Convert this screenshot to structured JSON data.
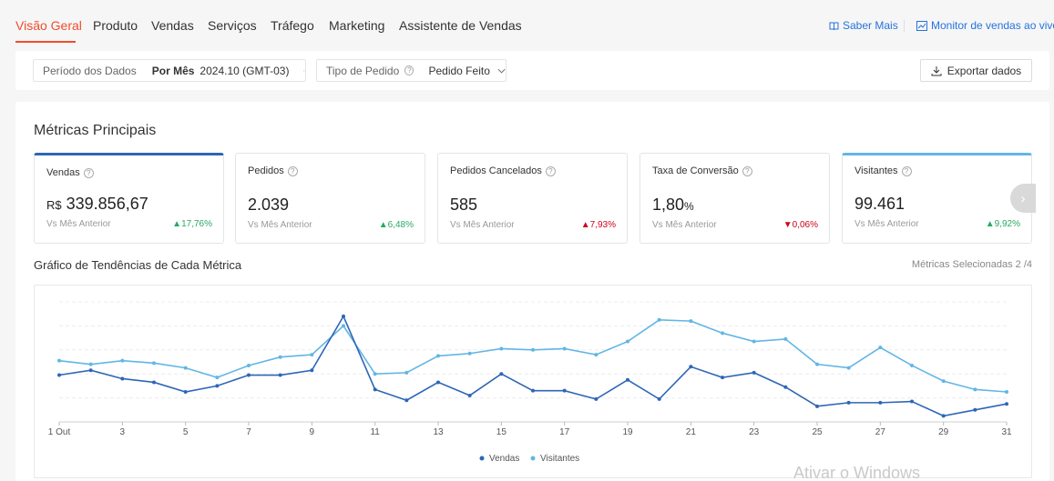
{
  "nav": {
    "tabs": [
      "Visão Geral",
      "Produto",
      "Vendas",
      "Serviços",
      "Tráfego",
      "Marketing",
      "Assistente de Vendas"
    ],
    "saber_mais": "Saber Mais",
    "monitor": "Monitor de vendas ao vivo"
  },
  "filters": {
    "period_label": "Período dos Dados",
    "period_type": "Por Mês",
    "period_value": "2024.10 (GMT-03)",
    "order_label": "Tipo de Pedido",
    "order_value": "Pedido Feito",
    "export_label": "Exportar dados"
  },
  "metrics": {
    "title": "Métricas Principais",
    "cards": [
      {
        "name": "Vendas",
        "currency": "R$",
        "value": "339.856,67",
        "unit": "",
        "vs": "Vs Mês Anterior",
        "delta": "17,76%",
        "dir": "up"
      },
      {
        "name": "Pedidos",
        "currency": "",
        "value": "2.039",
        "unit": "",
        "vs": "Vs Mês Anterior",
        "delta": "6,48%",
        "dir": "up"
      },
      {
        "name": "Pedidos Cancelados",
        "currency": "",
        "value": "585",
        "unit": "",
        "vs": "Vs Mês Anterior",
        "delta": "7,93%",
        "dir": "up"
      },
      {
        "name": "Taxa de Conversão",
        "currency": "",
        "value": "1,80",
        "unit": "%",
        "vs": "Vs Mês Anterior",
        "delta": "0,06%",
        "dir": "down"
      },
      {
        "name": "Visitantes",
        "currency": "",
        "value": "99.461",
        "unit": "",
        "vs": "Vs Mês Anterior",
        "delta": "9,92%",
        "dir": "up"
      }
    ],
    "colors": {
      "up": "#26aa63",
      "down_red": "#d0011b"
    }
  },
  "trend": {
    "title": "Gráfico de Tendências de Cada Métrica",
    "selected": "Métricas Selecionadas 2 /4"
  },
  "chart_data": {
    "type": "line",
    "x": [
      1,
      2,
      3,
      4,
      5,
      6,
      7,
      8,
      9,
      10,
      11,
      12,
      13,
      14,
      15,
      16,
      17,
      18,
      19,
      20,
      21,
      22,
      23,
      24,
      25,
      26,
      27,
      28,
      29,
      30,
      31
    ],
    "x_tick_labels": [
      "1 Out",
      "3",
      "5",
      "7",
      "9",
      "11",
      "13",
      "15",
      "17",
      "19",
      "21",
      "23",
      "25",
      "27",
      "29",
      "31"
    ],
    "x_tick_positions": [
      1,
      3,
      5,
      7,
      9,
      11,
      13,
      15,
      17,
      19,
      21,
      23,
      25,
      27,
      29,
      31
    ],
    "ylim": [
      0,
      100
    ],
    "grid": true,
    "legend": "bottom-center",
    "series": [
      {
        "name": "Vendas",
        "color": "#2e66b6",
        "values": [
          39,
          43,
          36,
          33,
          25,
          30,
          39,
          39,
          43,
          88,
          27,
          18,
          33,
          22,
          40,
          26,
          26,
          19,
          35,
          19,
          46,
          37,
          41,
          29,
          13,
          16,
          16,
          17,
          5,
          10,
          15
        ]
      },
      {
        "name": "Visitantes",
        "color": "#62b6e4",
        "values": [
          51,
          48,
          51,
          49,
          45,
          37,
          47,
          54,
          56,
          80,
          40,
          41,
          55,
          57,
          61,
          60,
          61,
          56,
          67,
          85,
          84,
          74,
          67,
          69,
          48,
          45,
          62,
          47,
          34,
          27,
          25
        ]
      }
    ]
  },
  "watermark": "Ativar o Windows"
}
